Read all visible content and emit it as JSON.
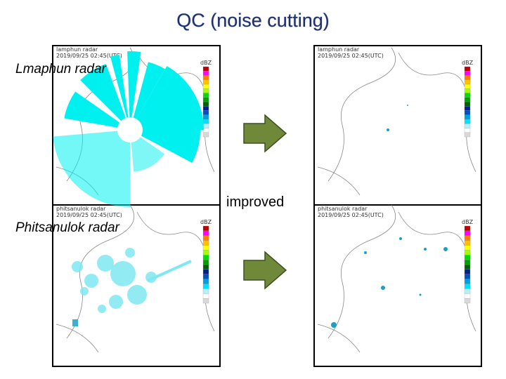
{
  "title": "QC (noise cutting)",
  "labels": {
    "top": "Lmaphun radar",
    "bottom": "Phitsanulok radar",
    "improved": "improved"
  },
  "panels": [
    {
      "name": "lamphun radar",
      "time": "2019/09/25 02:45(UTC)",
      "unit": "dBZ"
    },
    {
      "name": "lamphun radar",
      "time": "2019/09/25 02:45(UTC)",
      "unit": "dBZ"
    },
    {
      "name": "phitsanulok radar",
      "time": "2019/09/25 02:45(UTC)",
      "unit": "dBZ"
    },
    {
      "name": "phitsanulok radar",
      "time": "2019/09/25 02:45(UTC)",
      "unit": "dBZ"
    }
  ]
}
